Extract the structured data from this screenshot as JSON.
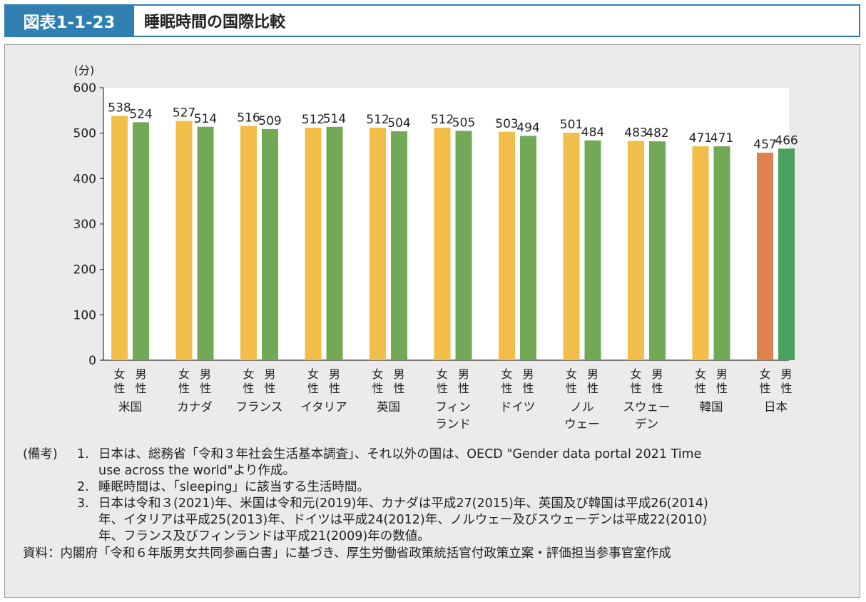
{
  "header": {
    "figure_number": "図表1-1-23",
    "title": "睡眠時間の国際比較"
  },
  "chart_data": {
    "type": "bar",
    "ylabel": "(分)",
    "ylim": [
      0,
      600
    ],
    "yticks": [
      0,
      100,
      200,
      300,
      400,
      500,
      600
    ],
    "grid": false,
    "categories": [
      "米国",
      "カナダ",
      "フランス",
      "イタリア",
      "英国",
      "フィンランド",
      "ドイツ",
      "ノルウェー",
      "スウェーデン",
      "韓国",
      "日本"
    ],
    "category_label_lines": [
      [
        "米国"
      ],
      [
        "カナダ"
      ],
      [
        "フランス"
      ],
      [
        "イタリア"
      ],
      [
        "英国"
      ],
      [
        "フィン",
        "ランド"
      ],
      [
        "ドイツ"
      ],
      [
        "ノル",
        "ウェー"
      ],
      [
        "スウェー",
        "デン"
      ],
      [
        "韓国"
      ],
      [
        "日本"
      ]
    ],
    "series": [
      {
        "name": "女性",
        "label_lines": [
          "女",
          "性"
        ],
        "values": [
          538,
          527,
          516,
          512,
          512,
          512,
          503,
          501,
          483,
          471,
          457
        ]
      },
      {
        "name": "男性",
        "label_lines": [
          "男",
          "性"
        ],
        "values": [
          524,
          514,
          509,
          514,
          504,
          505,
          494,
          484,
          482,
          471,
          466
        ]
      }
    ],
    "colors": {
      "female": "#f2bd48",
      "male": "#72a957",
      "japan_female": "#df834c",
      "japan_male": "#4aa05c",
      "plot_bg": "#ffffff"
    }
  },
  "notes": {
    "prefix": "(備考)",
    "items": [
      {
        "num": "1.",
        "lines": [
          "日本は、総務省「令和３年社会生活基本調査」、それ以外の国は、OECD \"Gender data portal 2021 Time",
          "use across the world\"より作成。"
        ]
      },
      {
        "num": "2.",
        "lines": [
          "睡眠時間は、「sleeping」に該当する生活時間。"
        ]
      },
      {
        "num": "3.",
        "lines": [
          "日本は令和３(2021)年、米国は令和元(2019)年、カナダは平成27(2015)年、英国及び韓国は平成26(2014)",
          "年、イタリアは平成25(2013)年、ドイツは平成24(2012)年、ノルウェー及びスウェーデンは平成22(2010)",
          "年、フランス及びフィンランドは平成21(2009)年の数値。"
        ]
      }
    ],
    "source": "資料：内閣府「令和６年版男女共同参画白書」に基づき、厚生労働省政策統括官付政策立案・評価担当参事官室作成"
  }
}
